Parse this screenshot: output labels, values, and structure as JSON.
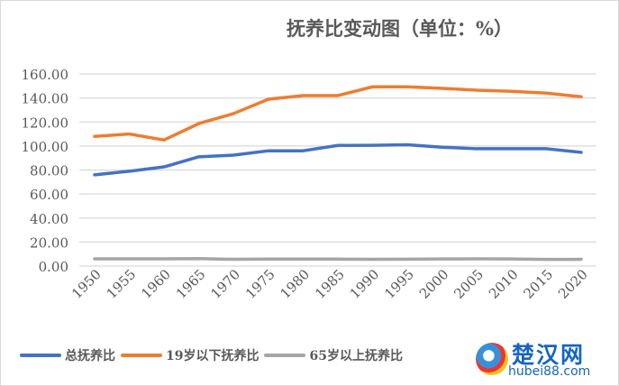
{
  "chart_data": {
    "type": "line",
    "title": "抚养比变动图（单位：%）",
    "xlabel": "",
    "ylabel": "",
    "categories": [
      "1950",
      "1955",
      "1960",
      "1965",
      "1970",
      "1975",
      "1980",
      "1985",
      "1990",
      "1995",
      "2000",
      "2005",
      "2010",
      "2015",
      "2020"
    ],
    "ylim": [
      0,
      160
    ],
    "yticks": [
      "0.00",
      "20.00",
      "40.00",
      "60.00",
      "80.00",
      "100.00",
      "120.00",
      "140.00",
      "160.00"
    ],
    "grid": true,
    "legend_position": "bottom",
    "series": [
      {
        "name": "总抚养比",
        "color": "#4472c4",
        "values": [
          76,
          79,
          82.6,
          91,
          92.4,
          96,
          96,
          100.5,
          100.6,
          101,
          99,
          97.7,
          97.7,
          97.7,
          94.7
        ]
      },
      {
        "name": "19岁以下抚养比",
        "color": "#ed7d31",
        "values": [
          108,
          110,
          105,
          118.7,
          127,
          139,
          142,
          142,
          149.3,
          149.3,
          148,
          146.5,
          145.5,
          144,
          141
        ]
      },
      {
        "name": "65岁以上抚养比",
        "color": "#a5a5a5",
        "values": [
          6,
          6,
          6,
          6.2,
          5.6,
          5.8,
          5.8,
          5.8,
          5.6,
          5.7,
          5.9,
          6,
          5.9,
          5.5,
          5.6
        ]
      }
    ]
  },
  "watermark": {
    "cn": "楚汉网",
    "en": "hubei88.com"
  }
}
